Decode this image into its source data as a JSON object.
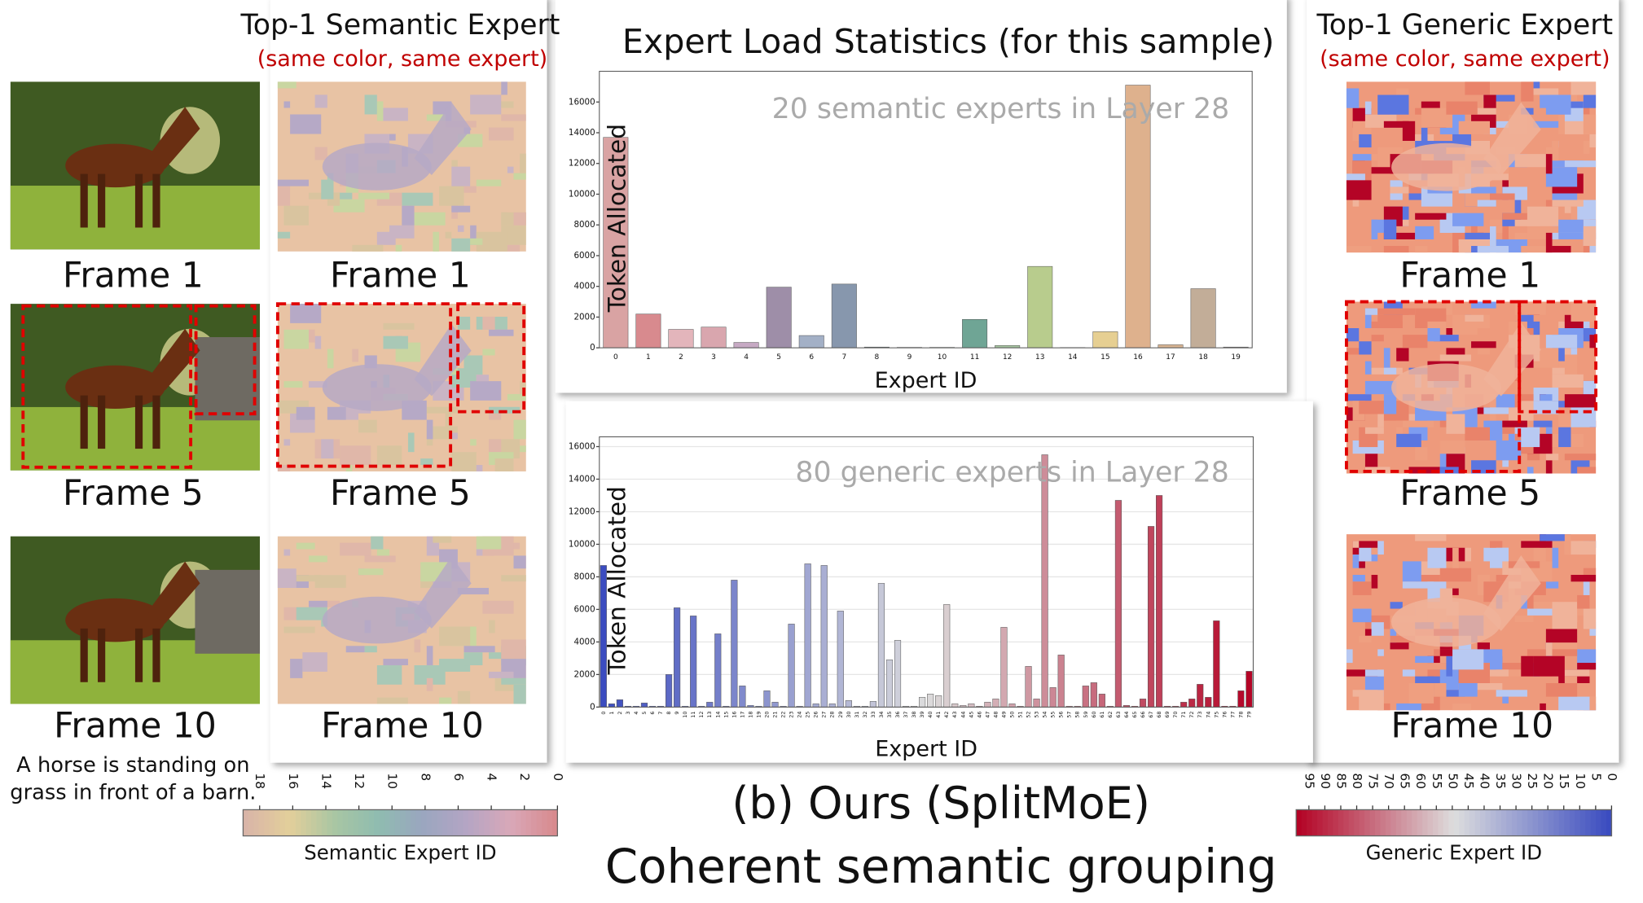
{
  "chart_data": [
    {
      "type": "bar",
      "title": "Expert Load Statistics (for this sample)",
      "annotation": "20 semantic experts in Layer 28",
      "ylabel": "Token Allocated",
      "xlabel": "Expert  ID",
      "categories": [
        "0",
        "1",
        "2",
        "3",
        "4",
        "5",
        "6",
        "7",
        "8",
        "9",
        "10",
        "11",
        "12",
        "13",
        "14",
        "15",
        "16",
        "17",
        "18",
        "19"
      ],
      "values": [
        13700,
        2200,
        1200,
        1350,
        350,
        3950,
        800,
        4150,
        50,
        30,
        30,
        1850,
        150,
        5300,
        20,
        1050,
        17100,
        200,
        3850,
        50
      ],
      "colors": [
        "#d9a3a3",
        "#d88a8e",
        "#e3b5bb",
        "#d9a6ae",
        "#c6a9c3",
        "#9e8ea8",
        "#a3b0c6",
        "#8797ad",
        "#7f9a9a",
        "#8fb5b0",
        "#96c2b6",
        "#6fa595",
        "#a6c6a1",
        "#b8cc8d",
        "#d7dc9f",
        "#e6cf92",
        "#deb18d",
        "#d8b492",
        "#c2ad98",
        "#b3a8a8"
      ],
      "ylim": [
        0,
        18000
      ],
      "yticks": [
        0,
        2000,
        4000,
        6000,
        8000,
        10000,
        12000,
        14000,
        16000
      ],
      "grid": false
    },
    {
      "type": "bar",
      "annotation": "80 generic experts in Layer 28",
      "ylabel": "Token Allocated",
      "xlabel": "Expert  ID",
      "categories": [
        "0",
        "1",
        "2",
        "3",
        "4",
        "5",
        "6",
        "7",
        "8",
        "9",
        "10",
        "11",
        "12",
        "13",
        "14",
        "15",
        "16",
        "17",
        "18",
        "19",
        "20",
        "21",
        "22",
        "23",
        "24",
        "25",
        "26",
        "27",
        "28",
        "29",
        "30",
        "31",
        "32",
        "33",
        "34",
        "35",
        "36",
        "37",
        "38",
        "39",
        "40",
        "41",
        "42",
        "43",
        "44",
        "45",
        "46",
        "47",
        "48",
        "49",
        "50",
        "51",
        "52",
        "53",
        "54",
        "55",
        "56",
        "57",
        "58",
        "59",
        "60",
        "61",
        "62",
        "63",
        "64",
        "65",
        "66",
        "67",
        "68",
        "69",
        "70",
        "71",
        "72",
        "73",
        "74",
        "75",
        "76",
        "77",
        "78",
        "79"
      ],
      "values": [
        8700,
        200,
        450,
        50,
        50,
        250,
        50,
        50,
        2000,
        6100,
        50,
        5600,
        50,
        300,
        4500,
        50,
        7800,
        1300,
        100,
        50,
        1000,
        300,
        50,
        5100,
        50,
        8800,
        200,
        8700,
        200,
        5900,
        400,
        50,
        50,
        350,
        7600,
        2900,
        4100,
        50,
        50,
        600,
        800,
        700,
        6300,
        200,
        100,
        200,
        50,
        300,
        500,
        4900,
        200,
        50,
        2500,
        500,
        15500,
        1200,
        3200,
        50,
        50,
        1300,
        1500,
        800,
        50,
        12700,
        100,
        50,
        500,
        11100,
        13000,
        50,
        50,
        300,
        500,
        1400,
        600,
        5300,
        50,
        50,
        1000,
        2200
      ],
      "colormap": [
        "#3b4cc0",
        "#dcdcdc",
        "#b40426"
      ],
      "ylim": [
        0,
        16600
      ],
      "yticks": [
        0,
        2000,
        4000,
        6000,
        8000,
        10000,
        12000,
        14000,
        16000
      ],
      "grid": true
    }
  ],
  "video_panel": {
    "frames": [
      "Frame 1",
      "Frame 5",
      "Frame 10"
    ],
    "caption_lines": [
      "A horse is standing on",
      "grass in front of a barn."
    ]
  },
  "semantic_panel": {
    "title": "Top-1 Semantic Expert",
    "subtitle": "(same color, same expert)",
    "frames": [
      "Frame 1",
      "Frame 5",
      "Frame 10"
    ]
  },
  "generic_panel": {
    "title": "Top-1 Generic Expert",
    "subtitle": "(same color, same expert)",
    "frames": [
      "Frame 1",
      "Frame 5",
      "Frame 10"
    ]
  },
  "caption": {
    "line1": "(b) Ours (SplitMoE)",
    "line2": "Coherent semantic grouping"
  },
  "colorbars": [
    {
      "label": "Semantic Expert  ID",
      "lim": [
        19,
        0
      ],
      "ticks": [
        18,
        16,
        14,
        12,
        10,
        8,
        6,
        4,
        2,
        0
      ],
      "colors": [
        "#d9b5a8",
        "#e3cf9a",
        "#a9c6a3",
        "#8fbcb0",
        "#9aa6bf",
        "#b4a5c4",
        "#d9a8b8",
        "#d88a8e"
      ]
    },
    {
      "label": "Generic Expert  ID",
      "lim": [
        99,
        0
      ],
      "ticks": [
        95,
        90,
        85,
        80,
        75,
        70,
        65,
        60,
        55,
        50,
        45,
        40,
        35,
        30,
        25,
        20,
        15,
        10,
        5,
        0
      ],
      "colors": [
        "#b40426",
        "#dddddd",
        "#3b4cc0"
      ]
    }
  ]
}
